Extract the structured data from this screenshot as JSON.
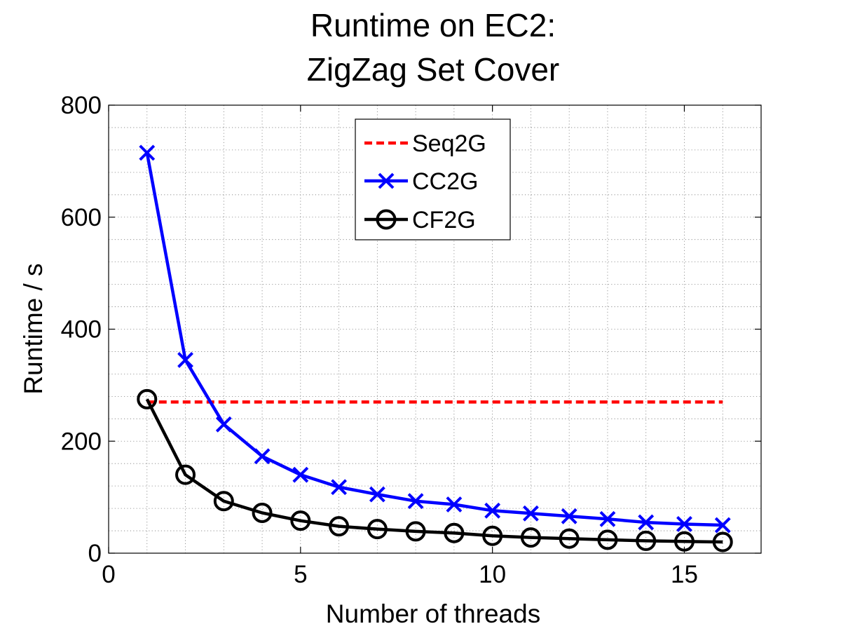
{
  "chart_data": {
    "type": "line",
    "title_lines": [
      "Runtime on EC2:",
      "ZigZag Set Cover"
    ],
    "xlabel": "Number of threads",
    "ylabel": "Runtime / s",
    "xlim": [
      0,
      17
    ],
    "ylim": [
      0,
      800
    ],
    "xticks": [
      0,
      5,
      10,
      15
    ],
    "yticks": [
      0,
      200,
      400,
      600,
      800
    ],
    "xtick_labels": [
      "0",
      "5",
      "10",
      "15"
    ],
    "ytick_labels": [
      "0",
      "200",
      "400",
      "600",
      "800"
    ],
    "x_minor_step": 1,
    "y_minor_step": 40,
    "grid": true,
    "legend_position": "top-center",
    "series": [
      {
        "name": "Seq2G",
        "color": "#ff0000",
        "style": "dashed",
        "marker": "none",
        "x": [
          1,
          16
        ],
        "y": [
          270,
          270
        ]
      },
      {
        "name": "CC2G",
        "color": "#0000ff",
        "style": "solid",
        "marker": "x",
        "x": [
          1,
          2,
          3,
          4,
          5,
          6,
          7,
          8,
          9,
          10,
          11,
          12,
          13,
          14,
          15,
          16
        ],
        "y": [
          715,
          345,
          230,
          173,
          140,
          118,
          105,
          93,
          87,
          76,
          71,
          66,
          61,
          55,
          52,
          50
        ]
      },
      {
        "name": "CF2G",
        "color": "#000000",
        "style": "solid",
        "marker": "circle",
        "x": [
          1,
          2,
          3,
          4,
          5,
          6,
          7,
          8,
          9,
          10,
          11,
          12,
          13,
          14,
          15,
          16
        ],
        "y": [
          275,
          140,
          93,
          72,
          58,
          48,
          43,
          39,
          36,
          31,
          28,
          26,
          24,
          22,
          21,
          20
        ]
      }
    ]
  }
}
